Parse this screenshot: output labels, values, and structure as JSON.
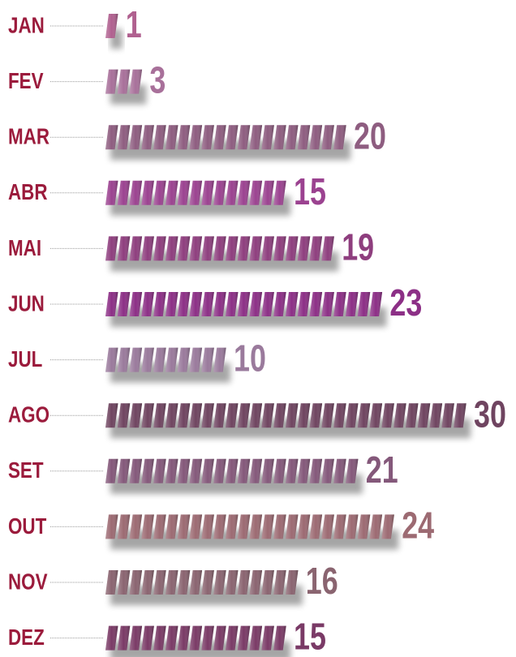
{
  "chart_data": {
    "type": "pictogram_bar",
    "categories": [
      "JAN",
      "FEV",
      "MAR",
      "ABR",
      "MAI",
      "JUN",
      "JUL",
      "AGO",
      "SET",
      "OUT",
      "NOV",
      "DEZ"
    ],
    "values": [
      1,
      3,
      20,
      15,
      19,
      23,
      10,
      30,
      21,
      24,
      16,
      15
    ],
    "label_color": "#9b1b3c",
    "colors": [
      "#b0608f",
      "#a8709a",
      "#8e5d80",
      "#9b4290",
      "#8e3e7e",
      "#8c2f86",
      "#9a7a9c",
      "#6f4460",
      "#84587a",
      "#9c6a72",
      "#8a6470",
      "#7a3a66"
    ]
  }
}
